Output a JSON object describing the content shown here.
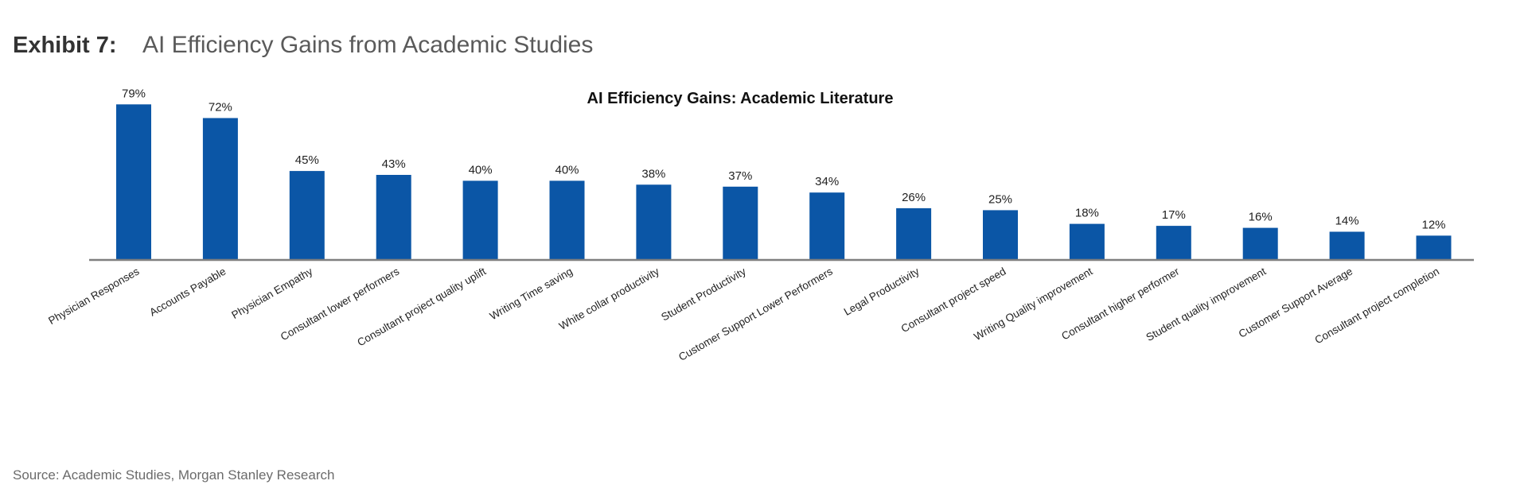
{
  "header": {
    "exhibit_label": "Exhibit 7:",
    "exhibit_title": "AI Efficiency Gains from Academic Studies"
  },
  "footer": {
    "source": "Source: Academic Studies, Morgan Stanley Research"
  },
  "colors": {
    "bar": "#0b56a6",
    "axis": "#7f7f7f",
    "text": "#222222"
  },
  "chart_data": {
    "type": "bar",
    "title": "AI Efficiency Gains: Academic Literature",
    "xlabel": "",
    "ylabel": "",
    "ylim": [
      0,
      80
    ],
    "grid": false,
    "legend": "none",
    "categories": [
      "Physician Responses",
      "Accounts Payable",
      "Physician Empathy",
      "Consultant lower performers",
      "Consultant project quality uplift",
      "Writing Time saving",
      "White collar productivity",
      "Student Productivity",
      "Customer Support Lower Performers",
      "Legal Productivity",
      "Consultant project speed",
      "Writing Quality improvement",
      "Consultant higher performer",
      "Student quality improvement",
      "Customer Support Average",
      "Consultant project completion"
    ],
    "values": [
      79,
      72,
      45,
      43,
      40,
      40,
      38,
      37,
      34,
      26,
      25,
      18,
      17,
      16,
      14,
      12
    ],
    "data_labels": [
      "79%",
      "72%",
      "45%",
      "43%",
      "40%",
      "40%",
      "38%",
      "37%",
      "34%",
      "26%",
      "25%",
      "18%",
      "17%",
      "16%",
      "14%",
      "12%"
    ]
  }
}
